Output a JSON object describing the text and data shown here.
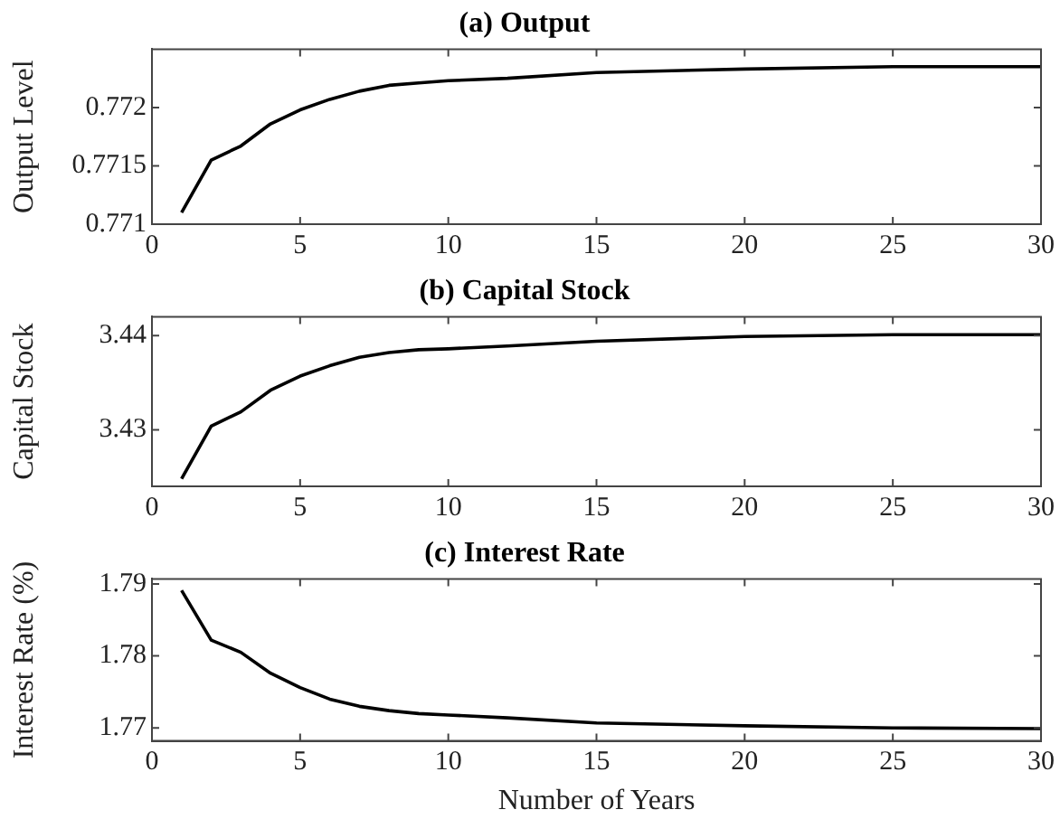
{
  "chart_data": [
    {
      "type": "line",
      "title": "(a) Output",
      "ylabel": "Output Level",
      "x": [
        1,
        2,
        3,
        4,
        5,
        6,
        7,
        8,
        9,
        10,
        12,
        15,
        20,
        25,
        30
      ],
      "series": [
        {
          "color": "#000000",
          "values": [
            0.7711,
            0.77155,
            0.77167,
            0.77186,
            0.77198,
            0.77207,
            0.77214,
            0.77219,
            0.77221,
            0.77223,
            0.77225,
            0.7723,
            0.77233,
            0.77235,
            0.77235
          ]
        }
      ],
      "xlim": [
        0,
        30
      ],
      "xticks": [
        0,
        5,
        10,
        15,
        20,
        25,
        30
      ],
      "ylim": [
        0.771,
        0.7725
      ],
      "yticks": [
        0.771,
        0.7715,
        0.772
      ],
      "grid": false,
      "legend": false,
      "marker": "none",
      "line_style": "solid"
    },
    {
      "type": "line",
      "title": "(b) Capital Stock",
      "ylabel": "Capital Stock",
      "x": [
        1,
        2,
        3,
        4,
        5,
        6,
        7,
        8,
        9,
        10,
        12,
        15,
        20,
        25,
        30
      ],
      "series": [
        {
          "color": "#000000",
          "values": [
            3.4248,
            3.4304,
            3.4319,
            3.4342,
            3.4357,
            3.4368,
            3.4377,
            3.4382,
            3.4385,
            3.4386,
            3.4389,
            3.4394,
            3.4399,
            3.4401,
            3.4401
          ]
        }
      ],
      "xlim": [
        0,
        30
      ],
      "xticks": [
        0,
        5,
        10,
        15,
        20,
        25,
        30
      ],
      "ylim": [
        3.424,
        3.442
      ],
      "yticks": [
        3.43,
        3.44
      ],
      "grid": false,
      "legend": false,
      "marker": "none",
      "line_style": "solid"
    },
    {
      "type": "line",
      "title": "(c) Interest Rate",
      "ylabel": "Interest Rate (%)",
      "xlabel": "Number of Years",
      "x": [
        1,
        2,
        3,
        4,
        5,
        6,
        7,
        8,
        9,
        10,
        12,
        15,
        20,
        25,
        30
      ],
      "series": [
        {
          "color": "#000000",
          "values": [
            1.7891,
            1.7822,
            1.7805,
            1.7776,
            1.7756,
            1.774,
            1.773,
            1.7724,
            1.772,
            1.7718,
            1.7714,
            1.7707,
            1.7703,
            1.77,
            1.7699
          ]
        }
      ],
      "xlim": [
        0,
        30
      ],
      "xticks": [
        0,
        5,
        10,
        15,
        20,
        25,
        30
      ],
      "ylim": [
        1.7682,
        1.7907
      ],
      "yticks": [
        1.77,
        1.78,
        1.79
      ],
      "grid": false,
      "legend": false,
      "marker": "none",
      "line_style": "solid"
    }
  ]
}
